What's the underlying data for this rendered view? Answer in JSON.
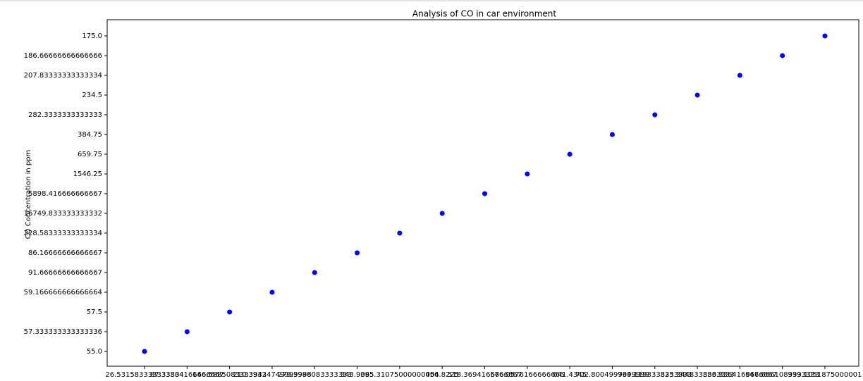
{
  "chart_data": {
    "type": "scatter",
    "title": "Analysis of CO in car environment",
    "y_label": "CO Concentration in ppm",
    "color": "#0000ff",
    "x": [
      "26.531583333333334",
      "87.33804166666667",
      "146.5885083333333",
      "210.39424749999998",
      "279.3986083333333",
      "343.9085",
      "395.31075000000004",
      "456.8225",
      "518.3694166666667",
      "576.0576166666666",
      "641.4345",
      "702.8004999999999",
      "764.1193333333333",
      "825.3448333333333",
      "886.3364166666667",
      "947.6661083333333",
      "999.1051875000001"
    ],
    "y": [
      "55.0",
      "57.333333333333336",
      "57.5",
      "59.166666666666664",
      "91.66666666666667",
      "86.16666666666667",
      "228.58333333333334",
      "16749.833333333332",
      "5898.416666666667",
      "1546.25",
      "659.75",
      "384.75",
      "282.3333333333333",
      "234.5",
      "207.83333333333334",
      "186.66666666666666",
      "175.0"
    ]
  }
}
